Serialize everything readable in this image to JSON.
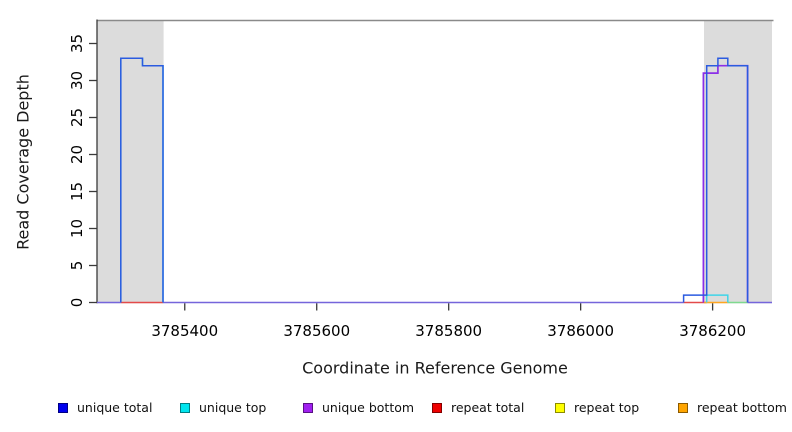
{
  "chart_data": {
    "type": "line",
    "subtype": "step-coverage",
    "title": "",
    "xlabel": "Coordinate in Reference Genome",
    "ylabel": "Read Coverage Depth",
    "xlim": [
      3785267,
      3786290
    ],
    "ylim": [
      0,
      38.2
    ],
    "xticks": [
      3785400,
      3785600,
      3785800,
      3786000,
      3786200
    ],
    "yticks": [
      0,
      5,
      10,
      15,
      20,
      25,
      30,
      35
    ],
    "grid": false,
    "legend_position": "bottom",
    "plot_bg": "#ffffff",
    "shaded_region_color": "#dcdcdc",
    "top_rule_color": "#8a8a8a",
    "axis_color": "#3a3a3a",
    "shaded_regions": [
      {
        "x1": 3785267,
        "x2": 3785368
      },
      {
        "x1": 3786187,
        "x2": 3786290
      }
    ],
    "series": [
      {
        "name": "unique total",
        "legend_color": "#0000EE",
        "line_color": "#2B5BE0",
        "steps": [
          [
            3785267,
            0
          ],
          [
            3785303,
            33
          ],
          [
            3785336,
            32
          ],
          [
            3785367,
            0
          ],
          [
            3786156,
            1
          ],
          [
            3786191,
            32
          ],
          [
            3786208,
            33
          ],
          [
            3786223,
            32
          ],
          [
            3786253,
            0
          ]
        ]
      },
      {
        "name": "unique top",
        "legend_color": "#00E5EE",
        "line_color": "#3FD4E8",
        "steps": [
          [
            3785267,
            0
          ],
          [
            3785303,
            33
          ],
          [
            3785336,
            32
          ],
          [
            3785367,
            0
          ],
          [
            3786191,
            1
          ],
          [
            3786223,
            0
          ]
        ]
      },
      {
        "name": "unique bottom",
        "legend_color": "#A020F0",
        "line_color": "#8C2FE8",
        "steps": [
          [
            3785267,
            0
          ],
          [
            3786186,
            31
          ],
          [
            3786208,
            32
          ],
          [
            3786253,
            0
          ]
        ]
      },
      {
        "name": "repeat total",
        "legend_color": "#EE0000",
        "line_color": "#E34A4A",
        "steps": [
          [
            3785267,
            0
          ]
        ]
      },
      {
        "name": "repeat top",
        "legend_color": "#FFFF00",
        "line_color": "#E8E84A",
        "steps": [
          [
            3785267,
            0
          ]
        ]
      },
      {
        "name": "repeat bottom",
        "legend_color": "#FFA500",
        "line_color": "#FFA520",
        "steps": [
          [
            3785267,
            0
          ]
        ]
      }
    ],
    "baseline_segments": [
      {
        "series": "unique total + unique bottom",
        "x1": 3785267,
        "x2": 3785303,
        "color": "#7565DB"
      },
      {
        "series": "repeat total",
        "x1": 3785303,
        "x2": 3785367,
        "color": "#E34A4A"
      },
      {
        "series": "unique total + unique bottom",
        "x1": 3785367,
        "x2": 3786156,
        "color": "#7565DB"
      },
      {
        "series": "repeat total",
        "x1": 3786156,
        "x2": 3786191,
        "color": "#E34A4A"
      },
      {
        "series": "repeat bottom",
        "x1": 3786187,
        "x2": 3786223,
        "color": "#FFA520"
      },
      {
        "series": "unique top + repeat top",
        "x1": 3786223,
        "x2": 3786253,
        "color": "#7FD98F"
      },
      {
        "series": "unique total + unique bottom",
        "x1": 3786253,
        "x2": 3786290,
        "color": "#7565DB"
      }
    ]
  },
  "legend": {
    "items": [
      {
        "label": "unique total",
        "color": "#0000EE"
      },
      {
        "label": "unique top",
        "color": "#00E5EE"
      },
      {
        "label": "unique bottom",
        "color": "#A020F0"
      },
      {
        "label": "repeat total",
        "color": "#EE0000"
      },
      {
        "label": "repeat top",
        "color": "#FFFF00"
      },
      {
        "label": "repeat bottom",
        "color": "#FFA500"
      }
    ]
  }
}
